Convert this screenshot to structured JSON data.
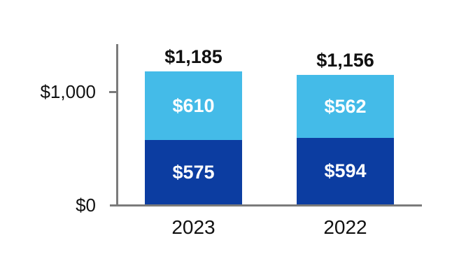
{
  "chart_data": {
    "type": "bar",
    "variant": "stacked",
    "categories": [
      "2023",
      "2022"
    ],
    "series": [
      {
        "name": "bottom-segment",
        "color": "#0C3DA1",
        "values": [
          575,
          594
        ],
        "labels": [
          "$575",
          "$594"
        ]
      },
      {
        "name": "top-segment",
        "color": "#44BBE8",
        "values": [
          610,
          562
        ],
        "labels": [
          "$610",
          "$562"
        ]
      }
    ],
    "totals": {
      "values": [
        1185,
        1156
      ],
      "labels": [
        "$1,185",
        "$1,156"
      ]
    },
    "y_axis": {
      "ticks": [
        {
          "value": 0,
          "label": "$0"
        },
        {
          "value": 1000,
          "label": "$1,000"
        }
      ],
      "range": [
        0,
        1420
      ]
    },
    "legend": "none",
    "grid": false
  },
  "colors": {
    "segment_bottom": "#0C3DA1",
    "segment_top": "#44BBE8",
    "axis": "#7B7B7B",
    "text": "#111111",
    "bar_label_text": "#FFFFFF",
    "background": "#FFFFFF"
  }
}
